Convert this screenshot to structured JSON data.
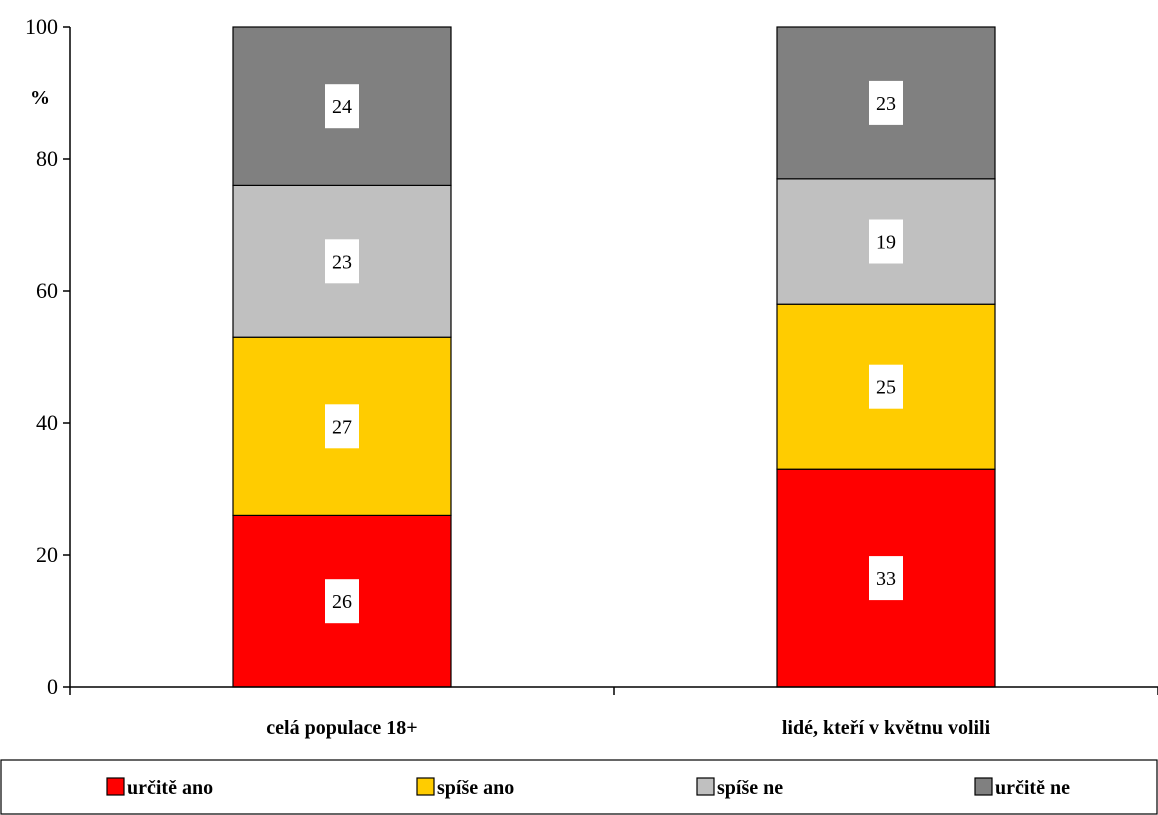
{
  "chart_data": {
    "type": "bar",
    "stacked": true,
    "title": "",
    "xlabel": "",
    "ylabel": "%",
    "ylim": [
      0,
      100
    ],
    "yticks": [
      0,
      20,
      40,
      60,
      80,
      100
    ],
    "categories": [
      "celá populace 18+",
      "lidé, kteří v květnu volili"
    ],
    "series": [
      {
        "name": "určitě ano",
        "color": "#ff0000",
        "values": [
          26,
          33
        ]
      },
      {
        "name": "spíše ano",
        "color": "#ffcc00",
        "values": [
          27,
          25
        ]
      },
      {
        "name": "spíše ne",
        "color": "#c0c0c0",
        "values": [
          23,
          19
        ]
      },
      {
        "name": "určitě ne",
        "color": "#808080",
        "values": [
          24,
          23
        ]
      }
    ],
    "grid": false,
    "legend_position": "bottom"
  }
}
